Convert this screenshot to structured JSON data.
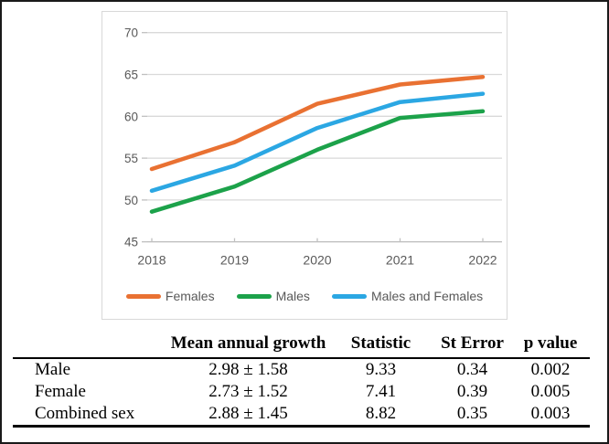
{
  "figure": {
    "background": "#ffffff",
    "frame_color": "#1a1a1a",
    "chart_panel_border": "#d8d8d8"
  },
  "chart_data": {
    "type": "line",
    "title": "",
    "xlabel": "",
    "ylabel": "",
    "x": [
      "2018",
      "2019",
      "2020",
      "2021",
      "2022"
    ],
    "series": [
      {
        "name": "Females",
        "color": "#E97132",
        "values": [
          53.7,
          56.9,
          61.5,
          63.8,
          64.7
        ]
      },
      {
        "name": "Males",
        "color": "#1CA24A",
        "values": [
          48.6,
          51.6,
          56.0,
          59.8,
          60.6
        ]
      },
      {
        "name": "Males and Females",
        "color": "#2BA7E3",
        "values": [
          51.1,
          54.1,
          58.6,
          61.7,
          62.7
        ]
      }
    ],
    "ylim": [
      45,
      70
    ],
    "yticks": [
      45,
      50,
      55,
      60,
      65,
      70
    ],
    "grid": true,
    "legend_position": "bottom",
    "axis_label_color": "#595959",
    "gridline_color": "#d9d9d9",
    "axisline_color": "#c0c0c0"
  },
  "table": {
    "headers": [
      "",
      "Mean annual growth",
      "Statistic",
      "St Error",
      "p value"
    ],
    "rows": [
      {
        "label": "Male",
        "cells": [
          "2.98 ± 1.58",
          "9.33",
          "0.34",
          "0.002"
        ]
      },
      {
        "label": "Female",
        "cells": [
          "2.73 ± 1.52",
          "7.41",
          "0.39",
          "0.005"
        ]
      },
      {
        "label": "Combined sex",
        "cells": [
          "2.88 ± 1.45",
          "8.82",
          "0.35",
          "0.003"
        ]
      }
    ]
  }
}
